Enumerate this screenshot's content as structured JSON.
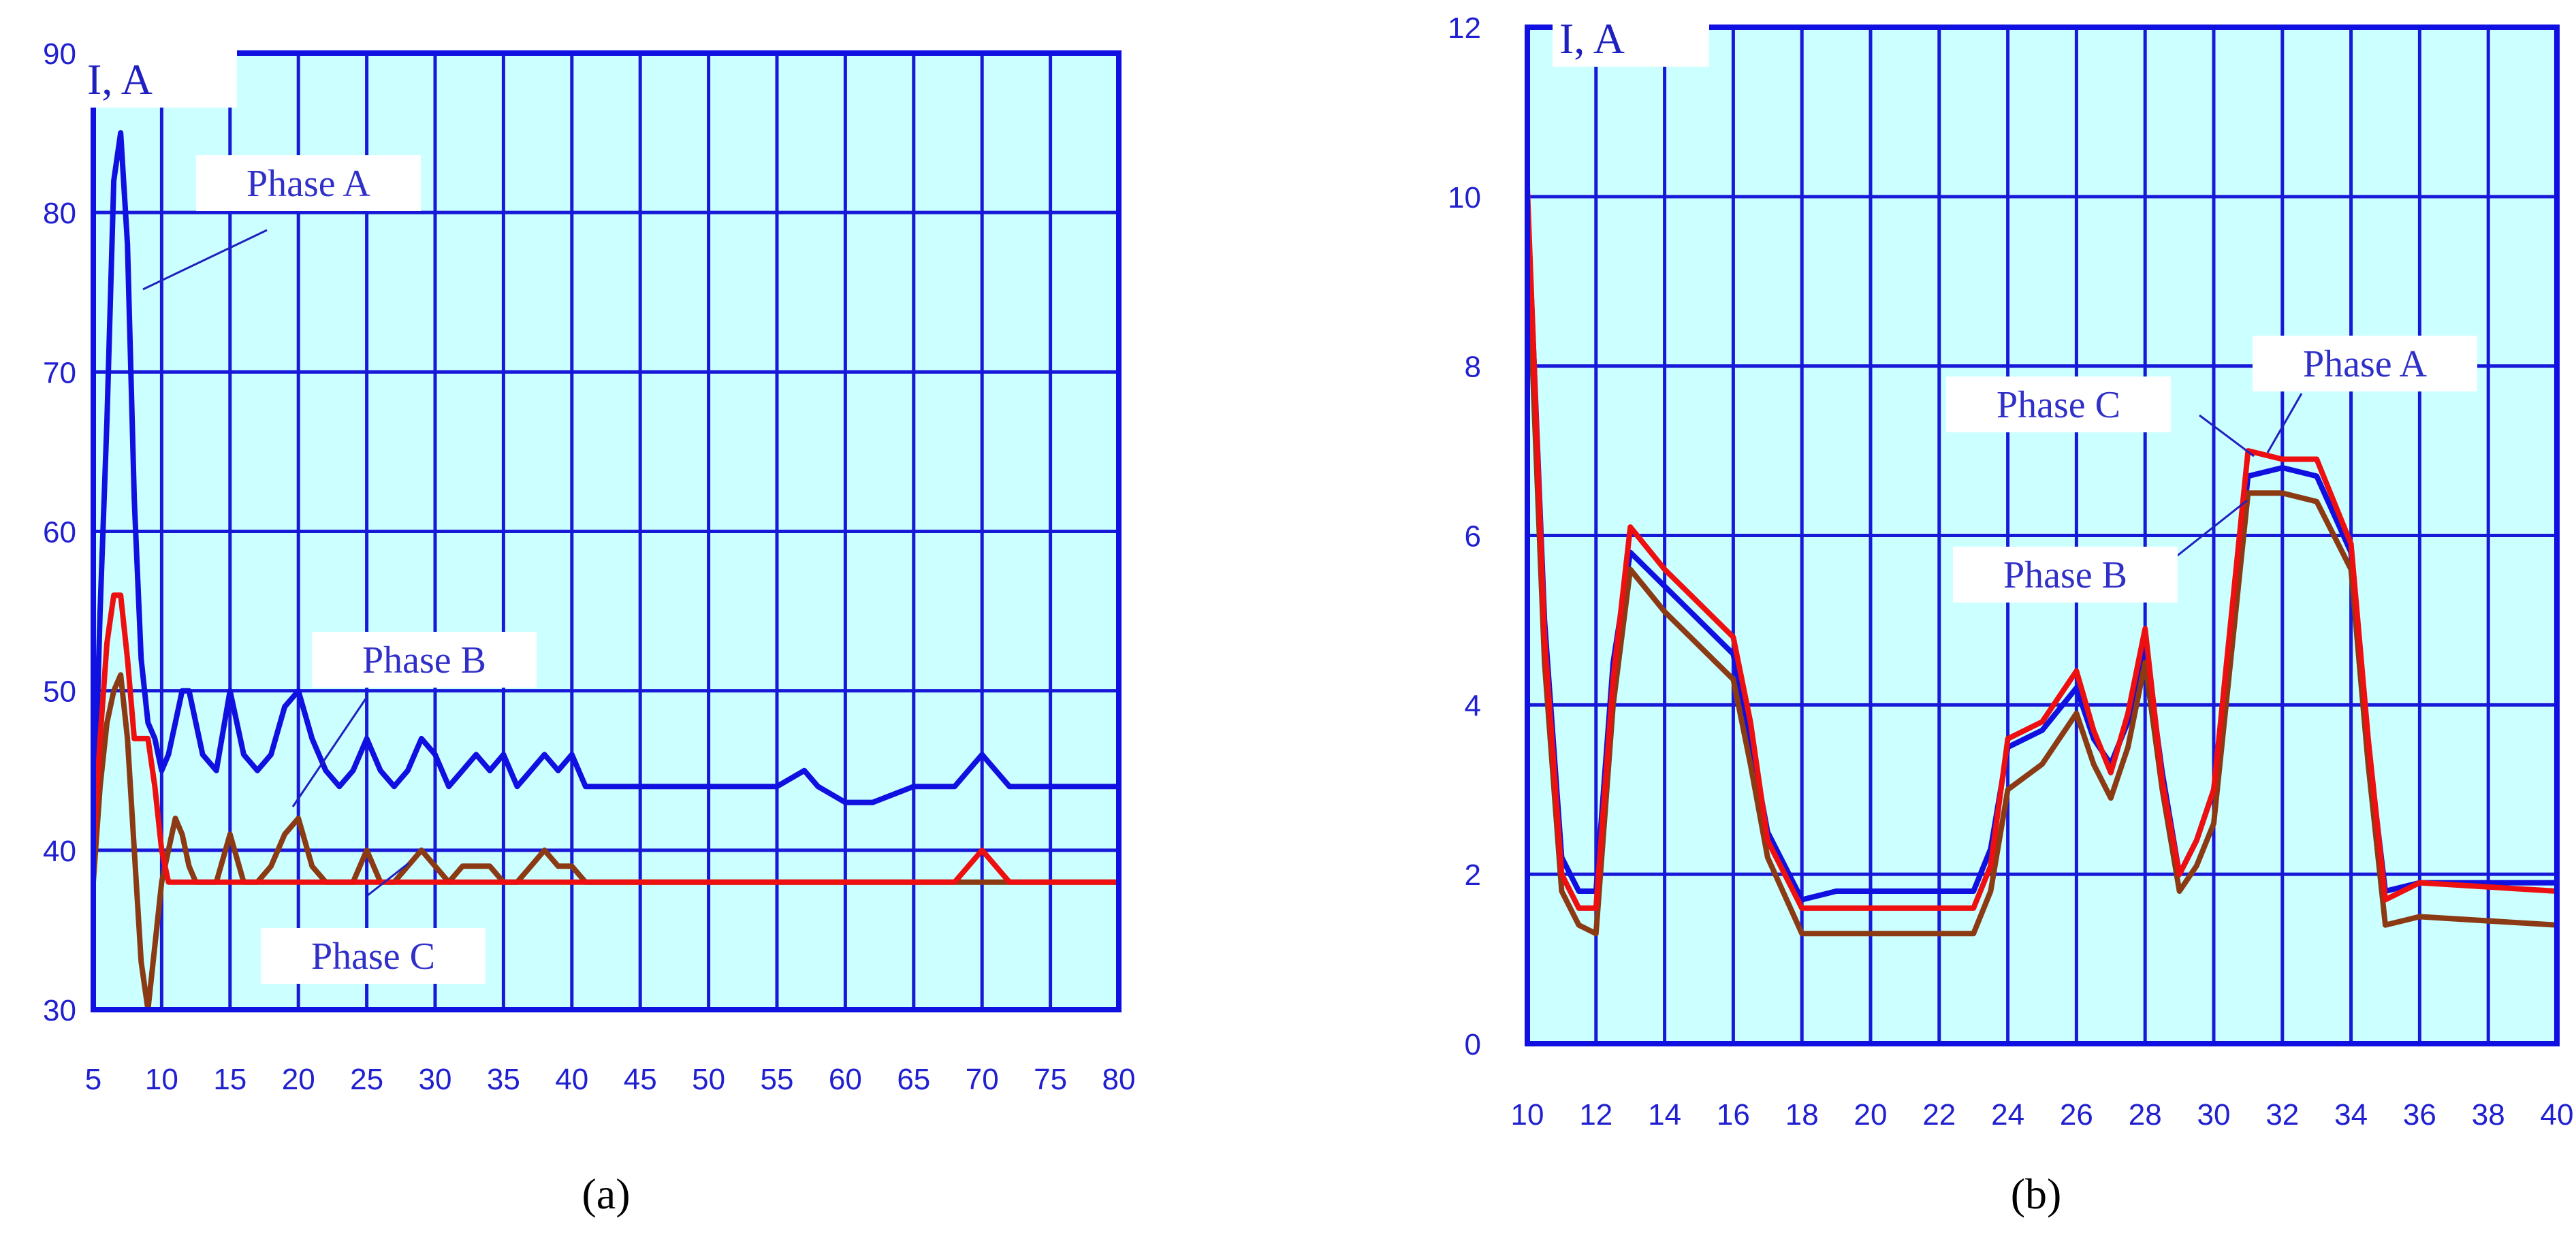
{
  "chart_data": [
    {
      "type": "line",
      "caption": "(a)",
      "y_label": "I, A",
      "xlim": [
        5,
        80
      ],
      "ylim": [
        30,
        90
      ],
      "x_ticks": [
        5,
        10,
        15,
        20,
        25,
        30,
        35,
        40,
        45,
        50,
        55,
        60,
        65,
        70,
        75,
        80
      ],
      "y_ticks": [
        30,
        40,
        50,
        60,
        70,
        80,
        90
      ],
      "grid": true,
      "annotations": [
        {
          "text": "Phase A",
          "series": "Phase A"
        },
        {
          "text": "Phase B",
          "series": "Phase B"
        },
        {
          "text": "Phase C",
          "series": "Phase C"
        }
      ],
      "series": [
        {
          "name": "Phase A",
          "color": "#1010e0",
          "x": [
            5,
            5.5,
            6,
            6.5,
            7,
            7.5,
            8,
            8.5,
            9,
            9.5,
            10,
            10.5,
            11,
            11.5,
            12,
            12.5,
            13,
            14,
            15,
            16,
            17,
            18,
            19,
            20,
            21,
            22,
            23,
            24,
            25,
            26,
            27,
            28,
            29,
            30,
            31,
            32,
            33,
            34,
            35,
            36,
            37,
            38,
            39,
            40,
            41,
            45,
            50,
            55,
            57,
            58,
            60,
            62,
            65,
            68,
            70,
            71,
            72,
            75,
            76,
            80
          ],
          "y": [
            40,
            55,
            67,
            82,
            85,
            78,
            62,
            52,
            48,
            47,
            45,
            46,
            48,
            50,
            50,
            48,
            46,
            45,
            50,
            46,
            45,
            46,
            49,
            50,
            47,
            45,
            44,
            45,
            47,
            45,
            44,
            45,
            47,
            46,
            44,
            45,
            46,
            45,
            46,
            44,
            45,
            46,
            45,
            46,
            44,
            44,
            44,
            44,
            45,
            44,
            43,
            43,
            44,
            44,
            46,
            45,
            44,
            44,
            44,
            44
          ]
        },
        {
          "name": "Phase B",
          "color": "#8b3a14",
          "x": [
            5,
            5.5,
            6,
            6.5,
            7,
            7.5,
            8,
            8.5,
            9,
            9.5,
            10,
            10.5,
            11,
            11.5,
            12,
            12.5,
            13,
            14,
            15,
            16,
            17,
            18,
            19,
            20,
            21,
            22,
            23,
            24,
            25,
            26,
            27,
            28,
            29,
            30,
            31,
            32,
            33,
            34,
            35,
            36,
            37,
            38,
            39,
            40,
            41,
            45,
            50,
            55,
            60,
            65,
            68,
            70,
            72,
            75,
            80
          ],
          "y": [
            38,
            44,
            48,
            50,
            51,
            47,
            40,
            33,
            30,
            34,
            38,
            40,
            42,
            41,
            39,
            38,
            38,
            38,
            41,
            38,
            38,
            39,
            41,
            42,
            39,
            38,
            38,
            38,
            40,
            38,
            38,
            39,
            40,
            39,
            38,
            39,
            39,
            39,
            38,
            38,
            39,
            40,
            39,
            39,
            38,
            38,
            38,
            38,
            38,
            38,
            38,
            38,
            38,
            38,
            38
          ]
        },
        {
          "name": "Phase C",
          "color": "#ee1010",
          "x": [
            5,
            5.5,
            6,
            6.5,
            7,
            7.5,
            8,
            8.5,
            9,
            9.5,
            10,
            10.5,
            11,
            12,
            15,
            20,
            25,
            30,
            35,
            40,
            45,
            50,
            55,
            60,
            65,
            68,
            70,
            72,
            75,
            80
          ],
          "y": [
            40,
            47,
            53,
            56,
            56,
            52,
            47,
            47,
            47,
            44,
            40,
            38,
            38,
            38,
            38,
            38,
            38,
            38,
            38,
            38,
            38,
            38,
            38,
            38,
            38,
            38,
            40,
            38,
            38,
            38
          ]
        }
      ]
    },
    {
      "type": "line",
      "caption": "(b)",
      "y_label": "I, A",
      "xlim": [
        10,
        40
      ],
      "ylim": [
        0,
        12
      ],
      "x_ticks": [
        10,
        12,
        14,
        16,
        18,
        20,
        22,
        24,
        26,
        28,
        30,
        32,
        34,
        36,
        38,
        40
      ],
      "y_ticks": [
        0,
        2,
        4,
        6,
        8,
        10,
        12
      ],
      "grid": true,
      "annotations": [
        {
          "text": "Phase C",
          "series": "Phase C"
        },
        {
          "text": "Phase A",
          "series": "Phase A"
        },
        {
          "text": "Phase B",
          "series": "Phase B"
        }
      ],
      "series": [
        {
          "name": "Phase A",
          "color": "#1010e0",
          "x": [
            10,
            10.5,
            11,
            11.5,
            12,
            12.5,
            13,
            14,
            15,
            16,
            16.5,
            17,
            18,
            19,
            22,
            23,
            23.5,
            24,
            25,
            26,
            26.5,
            27,
            27.5,
            28,
            28.5,
            29,
            29.5,
            30,
            31,
            32,
            33,
            34,
            34.5,
            35,
            36,
            40
          ],
          "y": [
            10,
            5,
            2.2,
            1.8,
            1.8,
            4.5,
            5.8,
            5.4,
            5.0,
            4.6,
            3.6,
            2.5,
            1.7,
            1.8,
            1.8,
            1.8,
            2.3,
            3.5,
            3.7,
            4.2,
            3.6,
            3.3,
            3.8,
            4.7,
            3.2,
            2.0,
            2.4,
            3.0,
            6.7,
            6.8,
            6.7,
            5.8,
            3.5,
            1.8,
            1.9,
            1.9
          ]
        },
        {
          "name": "Phase B",
          "color": "#8b3a14",
          "x": [
            10,
            10.5,
            11,
            11.5,
            12,
            12.5,
            13,
            14,
            15,
            16,
            16.5,
            17,
            18,
            19,
            22,
            23,
            23.5,
            24,
            25,
            26,
            26.5,
            27,
            27.5,
            28,
            28.5,
            29,
            29.5,
            30,
            31,
            32,
            33,
            34,
            34.5,
            35,
            36,
            40
          ],
          "y": [
            9.5,
            4.5,
            1.8,
            1.4,
            1.3,
            4.0,
            5.6,
            5.1,
            4.7,
            4.3,
            3.3,
            2.2,
            1.3,
            1.3,
            1.3,
            1.3,
            1.8,
            3.0,
            3.3,
            3.9,
            3.3,
            2.9,
            3.5,
            4.5,
            3.0,
            1.8,
            2.1,
            2.6,
            6.5,
            6.5,
            6.4,
            5.6,
            3.3,
            1.4,
            1.5,
            1.4
          ]
        },
        {
          "name": "Phase C",
          "color": "#ee1010",
          "x": [
            10,
            10.5,
            11,
            11.5,
            12,
            12.5,
            13,
            14,
            15,
            16,
            16.5,
            17,
            18,
            19,
            22,
            23,
            23.5,
            24,
            25,
            26,
            26.5,
            27,
            27.5,
            28,
            28.5,
            29,
            29.5,
            30,
            31,
            32,
            33,
            34,
            34.5,
            35,
            36,
            40
          ],
          "y": [
            10.1,
            4.8,
            2.0,
            1.6,
            1.6,
            4.3,
            6.1,
            5.6,
            5.2,
            4.8,
            3.8,
            2.4,
            1.6,
            1.6,
            1.6,
            1.6,
            2.1,
            3.6,
            3.8,
            4.4,
            3.7,
            3.2,
            3.9,
            4.9,
            3.1,
            2.0,
            2.4,
            3.0,
            7.0,
            6.9,
            6.9,
            5.9,
            3.6,
            1.7,
            1.9,
            1.8
          ]
        }
      ]
    }
  ]
}
